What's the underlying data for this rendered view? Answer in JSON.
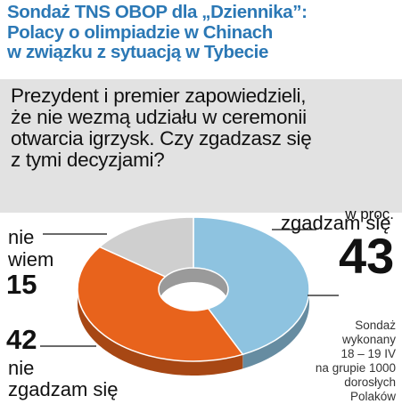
{
  "header": {
    "title_lines": [
      "Sondaż TNS OBOP dla „Dziennika”:",
      "Polacy o olimpiadzie w Chinach",
      "w związku z sytuacją w Tybecie"
    ]
  },
  "question_lines": [
    "Prezydent i premier zapowiedzieli,",
    "że nie wezmą udziału w ceremonii",
    "otwarcia igrzysk. Czy zgadzasz się",
    "z tymi decyzjami?"
  ],
  "unit_label": "w proc.",
  "footnote_lines": [
    "Sondaż",
    "wykonany",
    "18 – 19 IV",
    "na grupie 1000",
    "dorosłych",
    "Polaków"
  ],
  "labels": {
    "agree": {
      "word": "zgadzam się",
      "value": "43"
    },
    "disagree": {
      "value": "42",
      "word_line1": "nie",
      "word_line2": "zgadzam się"
    },
    "dontknow": {
      "word_line1": "nie",
      "word_line2": "wiem",
      "value": "15"
    }
  },
  "colors": {
    "title": "#2b78b5",
    "agree": "#8ec3e0",
    "disagree": "#e8631c",
    "dontknow": "#cfcfcf",
    "question_bg": "#e2e2e2"
  },
  "chart_data": {
    "type": "pie",
    "style": "donut-3d",
    "unit": "w proc.",
    "slices": [
      {
        "label": "zgadzam się",
        "value": 43
      },
      {
        "label": "nie zgadzam się",
        "value": 42
      },
      {
        "label": "nie wiem",
        "value": 15
      }
    ]
  }
}
